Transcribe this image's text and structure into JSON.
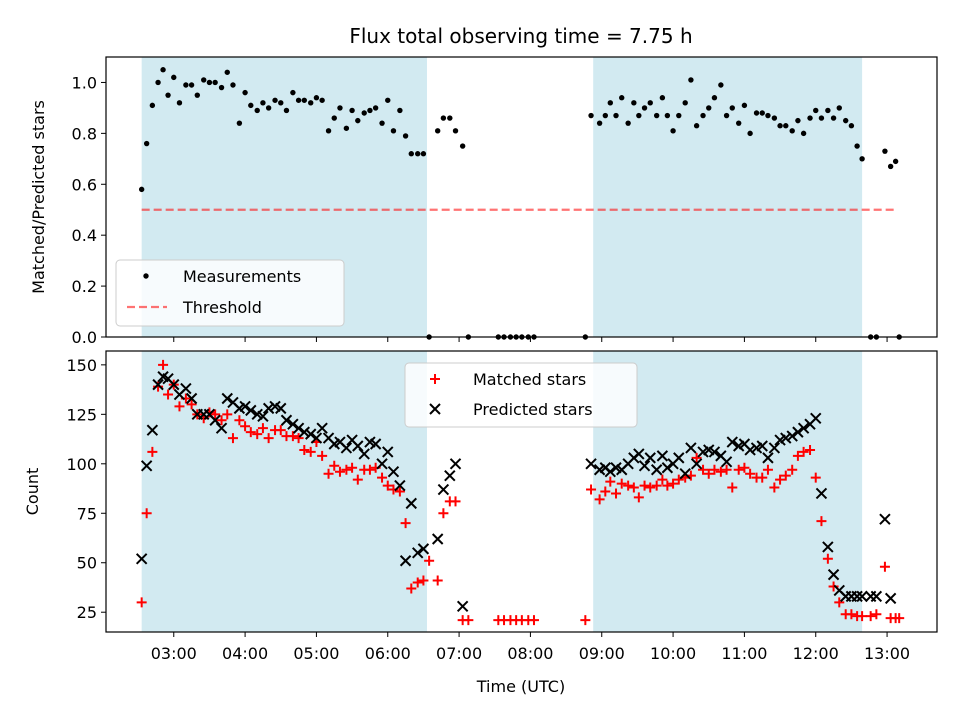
{
  "figure": {
    "title": "Flux total observing time = 7.75 h",
    "xlabel": "Time (UTC)",
    "x_ticks": [
      "03:00",
      "04:00",
      "05:00",
      "06:00",
      "07:00",
      "08:00",
      "09:00",
      "10:00",
      "11:00",
      "12:00",
      "13:00"
    ]
  },
  "colors": {
    "shade": "#add8e6",
    "measurement": "#000000",
    "threshold": "#ff0000",
    "matched": "#ff0000",
    "predicted": "#000000"
  },
  "chart_data": [
    {
      "type": "scatter",
      "title": "Flux total observing time = 7.75 h",
      "xlabel": "Time (UTC)",
      "ylabel": "Matched/Predicted stars",
      "x_unit": "hours UTC",
      "xlim": [
        2.05,
        13.7
      ],
      "ylim": [
        0.0,
        1.1
      ],
      "yticks": [
        0.0,
        0.2,
        0.4,
        0.6,
        0.8,
        1.0
      ],
      "grid": false,
      "legend": "lower left",
      "shaded_intervals": [
        [
          2.55,
          6.55
        ],
        [
          8.88,
          12.65
        ]
      ],
      "series": [
        {
          "name": "Measurements",
          "marker": "dot",
          "x": [
            2.55,
            2.62,
            2.7,
            2.78,
            2.85,
            2.92,
            3.0,
            3.08,
            3.17,
            3.25,
            3.33,
            3.42,
            3.5,
            3.58,
            3.67,
            3.75,
            3.83,
            3.92,
            4.0,
            4.08,
            4.17,
            4.25,
            4.33,
            4.42,
            4.5,
            4.58,
            4.67,
            4.75,
            4.83,
            4.92,
            5.0,
            5.08,
            5.17,
            5.25,
            5.33,
            5.42,
            5.5,
            5.58,
            5.67,
            5.75,
            5.83,
            5.92,
            6.0,
            6.08,
            6.17,
            6.25,
            6.33,
            6.42,
            6.5,
            6.58,
            6.7,
            6.78,
            6.87,
            6.95,
            7.05,
            7.13,
            7.55,
            7.63,
            7.72,
            7.8,
            7.88,
            7.97,
            8.05,
            8.77,
            8.85,
            8.97,
            9.05,
            9.12,
            9.2,
            9.28,
            9.37,
            9.45,
            9.52,
            9.6,
            9.68,
            9.77,
            9.85,
            9.92,
            10.0,
            10.08,
            10.17,
            10.25,
            10.33,
            10.42,
            10.5,
            10.58,
            10.67,
            10.75,
            10.83,
            10.92,
            11.0,
            11.08,
            11.17,
            11.25,
            11.33,
            11.42,
            11.5,
            11.58,
            11.67,
            11.75,
            11.83,
            11.92,
            12.0,
            12.08,
            12.17,
            12.25,
            12.33,
            12.42,
            12.5,
            12.58,
            12.65,
            12.77,
            12.85,
            12.97,
            13.05,
            13.12,
            13.17
          ],
          "y": [
            0.58,
            0.76,
            0.91,
            1.0,
            1.05,
            0.95,
            1.02,
            0.92,
            0.99,
            0.99,
            0.95,
            1.01,
            1.0,
            1.0,
            0.98,
            1.04,
            0.99,
            0.84,
            0.96,
            0.91,
            0.89,
            0.92,
            0.9,
            0.93,
            0.92,
            0.89,
            0.96,
            0.93,
            0.93,
            0.92,
            0.94,
            0.93,
            0.81,
            0.86,
            0.9,
            0.82,
            0.89,
            0.85,
            0.88,
            0.89,
            0.9,
            0.84,
            0.93,
            0.81,
            0.89,
            0.79,
            0.72,
            0.72,
            0.72,
            0.0,
            0.81,
            0.86,
            0.86,
            0.81,
            0.75,
            0.0,
            0.0,
            0.0,
            0.0,
            0.0,
            0.0,
            0.0,
            0.0,
            0.0,
            0.87,
            0.84,
            0.87,
            0.92,
            0.87,
            0.94,
            0.84,
            0.92,
            0.87,
            0.9,
            0.92,
            0.87,
            0.94,
            0.87,
            0.81,
            0.87,
            0.92,
            1.01,
            0.83,
            0.87,
            0.9,
            0.94,
            0.99,
            0.87,
            0.9,
            0.84,
            0.91,
            0.8,
            0.88,
            0.88,
            0.87,
            0.86,
            0.83,
            0.83,
            0.81,
            0.85,
            0.8,
            0.86,
            0.89,
            0.86,
            0.89,
            0.86,
            0.9,
            0.85,
            0.83,
            0.75,
            0.7,
            0.0,
            0.0,
            0.73,
            0.67,
            0.69,
            0.0
          ]
        },
        {
          "name": "Threshold",
          "style": "dashed",
          "x": [
            2.55,
            13.1
          ],
          "y": [
            0.5,
            0.5
          ]
        }
      ]
    },
    {
      "type": "scatter",
      "xlabel": "Time (UTC)",
      "ylabel": "Count",
      "x_unit": "hours UTC",
      "xlim": [
        2.05,
        13.7
      ],
      "ylim": [
        15,
        157
      ],
      "yticks": [
        25,
        50,
        75,
        100,
        125,
        150
      ],
      "grid": false,
      "legend": "upper center",
      "shaded_intervals": [
        [
          2.55,
          6.55
        ],
        [
          8.88,
          12.65
        ]
      ],
      "series": [
        {
          "name": "Matched stars",
          "marker": "plus",
          "x": [
            2.55,
            2.62,
            2.7,
            2.78,
            2.85,
            2.92,
            3.0,
            3.08,
            3.17,
            3.25,
            3.33,
            3.42,
            3.5,
            3.58,
            3.67,
            3.75,
            3.83,
            3.92,
            4.0,
            4.08,
            4.17,
            4.25,
            4.33,
            4.42,
            4.5,
            4.58,
            4.67,
            4.75,
            4.83,
            4.92,
            5.0,
            5.08,
            5.17,
            5.25,
            5.33,
            5.42,
            5.5,
            5.58,
            5.67,
            5.75,
            5.83,
            5.92,
            6.0,
            6.08,
            6.17,
            6.25,
            6.33,
            6.42,
            6.5,
            6.58,
            6.7,
            6.78,
            6.87,
            6.95,
            7.05,
            7.13,
            7.55,
            7.63,
            7.72,
            7.8,
            7.88,
            7.97,
            8.05,
            8.77,
            8.85,
            8.97,
            9.05,
            9.12,
            9.2,
            9.28,
            9.37,
            9.45,
            9.52,
            9.6,
            9.68,
            9.77,
            9.85,
            9.92,
            10.0,
            10.08,
            10.17,
            10.25,
            10.33,
            10.42,
            10.5,
            10.58,
            10.67,
            10.75,
            10.83,
            10.92,
            11.0,
            11.08,
            11.17,
            11.25,
            11.33,
            11.42,
            11.5,
            11.58,
            11.67,
            11.75,
            11.83,
            11.92,
            12.0,
            12.08,
            12.17,
            12.25,
            12.33,
            12.42,
            12.5,
            12.58,
            12.65,
            12.77,
            12.85,
            12.97,
            13.05,
            13.12,
            13.17
          ],
          "y": [
            30,
            75,
            106,
            139,
            150,
            135,
            140,
            129,
            133,
            130,
            125,
            123,
            126,
            125,
            122,
            125,
            113,
            122,
            119,
            116,
            115,
            118,
            113,
            117,
            117,
            114,
            114,
            113,
            107,
            106,
            111,
            104,
            95,
            99,
            96,
            97,
            98,
            92,
            97,
            97,
            98,
            93,
            89,
            87,
            86,
            70,
            37,
            40,
            41,
            51,
            41,
            75,
            81,
            81,
            21,
            21,
            21,
            21,
            21,
            21,
            21,
            21,
            21,
            21,
            87,
            82,
            86,
            91,
            85,
            90,
            89,
            88,
            83,
            89,
            88,
            89,
            92,
            89,
            90,
            92,
            93,
            94,
            103,
            97,
            95,
            97,
            96,
            97,
            88,
            97,
            98,
            95,
            93,
            93,
            97,
            88,
            92,
            94,
            97,
            104,
            106,
            107,
            93,
            71,
            52,
            38,
            30,
            24,
            24,
            23,
            23,
            23,
            24,
            48,
            22,
            22,
            22
          ]
        },
        {
          "name": "Predicted stars",
          "marker": "x",
          "x": [
            2.55,
            2.62,
            2.7,
            2.78,
            2.85,
            2.92,
            3.0,
            3.08,
            3.17,
            3.25,
            3.33,
            3.42,
            3.5,
            3.58,
            3.67,
            3.75,
            3.83,
            3.92,
            4.0,
            4.08,
            4.17,
            4.25,
            4.33,
            4.42,
            4.5,
            4.58,
            4.67,
            4.75,
            4.83,
            4.92,
            5.0,
            5.08,
            5.17,
            5.25,
            5.33,
            5.42,
            5.5,
            5.58,
            5.67,
            5.75,
            5.83,
            5.92,
            6.0,
            6.08,
            6.17,
            6.25,
            6.33,
            6.42,
            6.5,
            6.7,
            6.78,
            6.87,
            6.95,
            7.05,
            8.85,
            8.97,
            9.05,
            9.12,
            9.2,
            9.28,
            9.37,
            9.45,
            9.52,
            9.6,
            9.68,
            9.77,
            9.85,
            9.92,
            10.0,
            10.08,
            10.17,
            10.25,
            10.33,
            10.42,
            10.5,
            10.58,
            10.67,
            10.75,
            10.83,
            10.92,
            11.0,
            11.08,
            11.17,
            11.25,
            11.33,
            11.42,
            11.5,
            11.58,
            11.67,
            11.75,
            11.83,
            11.92,
            12.0,
            12.08,
            12.17,
            12.25,
            12.33,
            12.42,
            12.5,
            12.58,
            12.65,
            12.77,
            12.85,
            12.97,
            13.05
          ],
          "y": [
            52,
            99,
            117,
            140,
            144,
            143,
            140,
            135,
            138,
            133,
            125,
            125,
            125,
            122,
            118,
            133,
            131,
            128,
            129,
            127,
            125,
            124,
            128,
            129,
            128,
            122,
            120,
            118,
            116,
            115,
            113,
            118,
            113,
            110,
            111,
            108,
            112,
            109,
            105,
            111,
            110,
            100,
            106,
            96,
            89,
            51,
            80,
            55,
            57,
            62,
            87,
            94,
            100,
            28,
            100,
            97,
            98,
            96,
            98,
            97,
            100,
            103,
            105,
            99,
            103,
            97,
            104,
            98,
            100,
            103,
            95,
            108,
            100,
            106,
            107,
            106,
            104,
            101,
            111,
            109,
            110,
            107,
            108,
            109,
            103,
            108,
            112,
            113,
            114,
            116,
            118,
            120,
            123,
            85,
            58,
            44,
            36,
            33,
            33,
            33,
            33,
            33,
            33,
            72,
            32
          ]
        }
      ]
    }
  ]
}
